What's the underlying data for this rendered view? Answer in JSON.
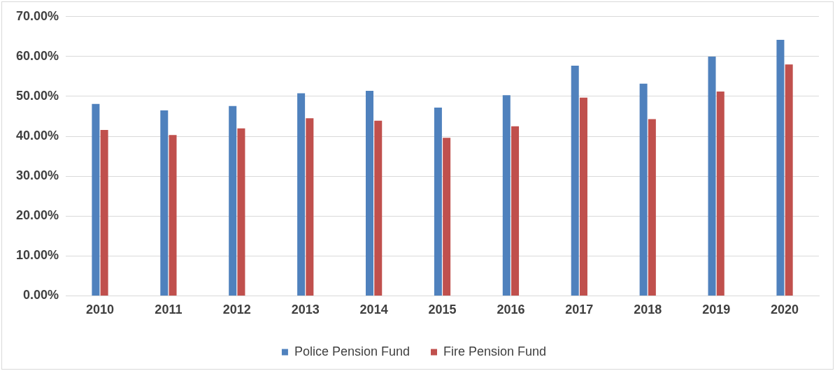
{
  "chart_data": {
    "type": "bar",
    "categories": [
      "2010",
      "2011",
      "2012",
      "2013",
      "2014",
      "2015",
      "2016",
      "2017",
      "2018",
      "2019",
      "2020"
    ],
    "series": [
      {
        "name": "Police Pension Fund",
        "color": "#4f81bd",
        "values": [
          48.1,
          46.5,
          47.6,
          50.8,
          51.4,
          47.2,
          50.3,
          57.7,
          53.2,
          60.0,
          64.2
        ]
      },
      {
        "name": "Fire Pension Fund",
        "color": "#c0504d",
        "values": [
          41.6,
          40.3,
          42.0,
          44.5,
          43.9,
          39.6,
          42.5,
          49.7,
          44.3,
          51.2,
          58.0
        ]
      }
    ],
    "ylim": [
      0,
      70
    ],
    "yticks": [
      {
        "value": 0,
        "label": "0.00%"
      },
      {
        "value": 10,
        "label": "10.00%"
      },
      {
        "value": 20,
        "label": "20.00%"
      },
      {
        "value": 30,
        "label": "30.00%"
      },
      {
        "value": 40,
        "label": "40.00%"
      },
      {
        "value": 50,
        "label": "50.00%"
      },
      {
        "value": 60,
        "label": "60.00%"
      },
      {
        "value": 70,
        "label": "70.00%"
      }
    ],
    "grid": "y",
    "legend": "bottom"
  }
}
